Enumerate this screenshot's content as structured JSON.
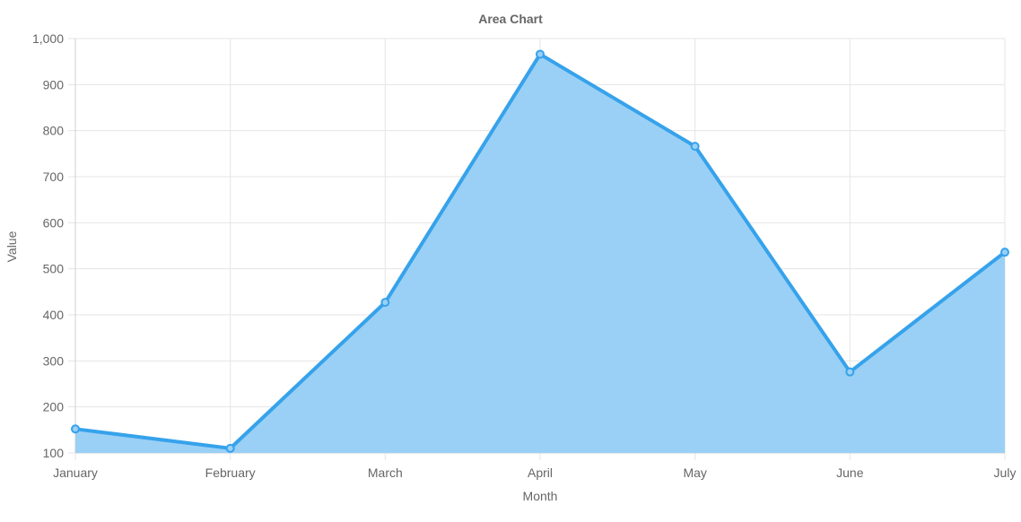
{
  "chart_data": {
    "type": "area",
    "title": "Area Chart",
    "xlabel": "Month",
    "ylabel": "Value",
    "categories": [
      "January",
      "February",
      "March",
      "April",
      "May",
      "June",
      "July"
    ],
    "series": [
      {
        "values": [
          152,
          110,
          427,
          966,
          766,
          276,
          536
        ]
      }
    ],
    "ylim": [
      100,
      1000
    ],
    "yticks": [
      100,
      200,
      300,
      400,
      500,
      600,
      700,
      800,
      900,
      1000
    ],
    "ytick_labels": [
      "100",
      "200",
      "300",
      "400",
      "500",
      "600",
      "700",
      "800",
      "900",
      "1,000"
    ],
    "grid": true,
    "legend": "none",
    "colors": {
      "line": "#36a2eb",
      "fill": "#9ad0f5",
      "grid": "#e5e5e5",
      "text": "#666666"
    }
  }
}
